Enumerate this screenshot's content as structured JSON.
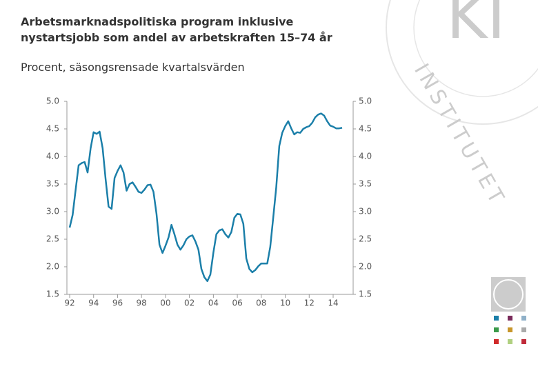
{
  "chart_data": {
    "type": "line",
    "title": [
      "Arbetsmarknadspolitiska program inklusive",
      "nystartsjobb som andel av arbetskraften 15–74 år"
    ],
    "subtitle": "Procent, säsongsrensade kvartalsvärden",
    "categories": [
      "92",
      null,
      null,
      null,
      null,
      null,
      null,
      null,
      "94",
      null,
      null,
      null,
      null,
      null,
      null,
      null,
      "96",
      null,
      null,
      null,
      null,
      null,
      null,
      null,
      "98",
      null,
      null,
      null,
      null,
      null,
      null,
      null,
      "00",
      null,
      null,
      null,
      null,
      null,
      null,
      null,
      "02",
      null,
      null,
      null,
      null,
      null,
      null,
      null,
      "04",
      null,
      null,
      null,
      null,
      null,
      null,
      null,
      "06",
      null,
      null,
      null,
      null,
      null,
      null,
      null,
      "08",
      null,
      null,
      null,
      null,
      null,
      null,
      null,
      "10",
      null,
      null,
      null,
      null,
      null,
      null,
      null,
      "12",
      null,
      null,
      null,
      null,
      null,
      null,
      null,
      "14",
      null,
      null,
      null
    ],
    "series": [
      {
        "color": "#1b7fa9",
        "values": [
          2.71,
          2.94,
          3.4,
          3.84,
          3.88,
          3.9,
          3.71,
          4.15,
          4.44,
          4.41,
          4.45,
          4.15,
          3.59,
          3.09,
          3.05,
          3.61,
          3.74,
          3.84,
          3.71,
          3.38,
          3.5,
          3.53,
          3.45,
          3.36,
          3.34,
          3.4,
          3.48,
          3.49,
          3.36,
          2.96,
          2.4,
          2.25,
          2.38,
          2.53,
          2.76,
          2.59,
          2.4,
          2.31,
          2.39,
          2.5,
          2.55,
          2.57,
          2.46,
          2.31,
          1.96,
          1.81,
          1.74,
          1.86,
          2.26,
          2.59,
          2.66,
          2.68,
          2.59,
          2.53,
          2.63,
          2.89,
          2.96,
          2.95,
          2.78,
          2.15,
          1.96,
          1.9,
          1.94,
          2.01,
          2.06,
          2.06,
          2.06,
          2.36,
          2.9,
          3.44,
          4.19,
          4.43,
          4.55,
          4.64,
          4.51,
          4.4,
          4.44,
          4.43,
          4.5,
          4.53,
          4.55,
          4.61,
          4.71,
          4.76,
          4.78,
          4.74,
          4.64,
          4.56,
          4.54,
          4.51,
          4.51,
          4.52
        ]
      }
    ],
    "ylim": [
      1.5,
      5.0
    ],
    "yticks": [
      {
        "value": 1.5,
        "label": "1.5"
      },
      {
        "value": 2,
        "label": "2.0"
      },
      {
        "value": 2.5,
        "label": "2.5"
      },
      {
        "value": 3,
        "label": "3.0"
      },
      {
        "value": 3.5,
        "label": "3.5"
      },
      {
        "value": 4,
        "label": "4.0"
      },
      {
        "value": 4.5,
        "label": "4.5"
      },
      {
        "value": 5,
        "label": "5.0"
      }
    ],
    "y2lim": [
      1.5,
      5.0
    ],
    "y2ticks": [
      {
        "value": 1.5,
        "label": "1.5"
      },
      {
        "value": 2,
        "label": "2.0"
      },
      {
        "value": 2.5,
        "label": "2.5"
      },
      {
        "value": 3,
        "label": "3.0"
      },
      {
        "value": 3.5,
        "label": "3.5"
      },
      {
        "value": 4,
        "label": "4.0"
      },
      {
        "value": 4.5,
        "label": "4.5"
      },
      {
        "value": 5,
        "label": "5.0"
      }
    ],
    "logo": {
      "monogram": "KI",
      "wordmark": "INSTITUTET"
    }
  }
}
